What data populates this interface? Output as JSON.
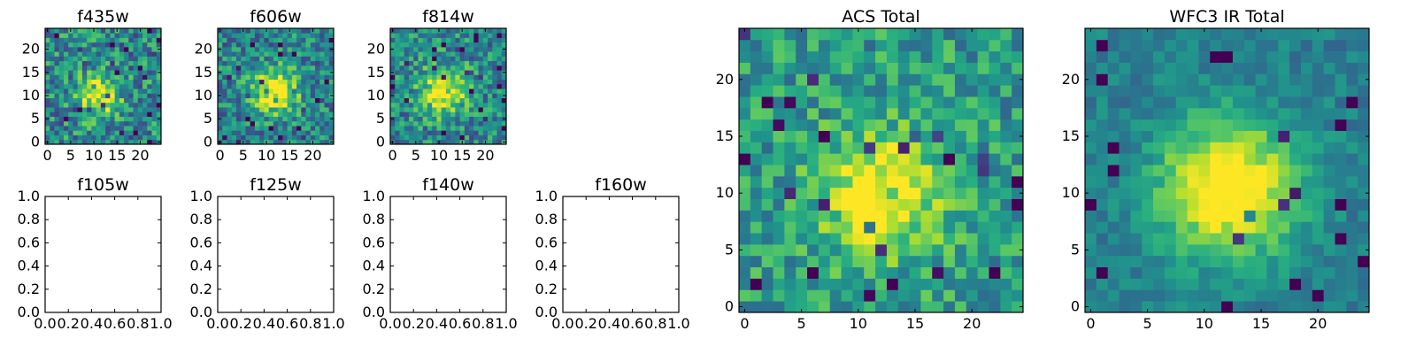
{
  "chart_data": [
    {
      "id": "f435w",
      "type": "heatmap",
      "title": "f435w",
      "grid_size": 25,
      "has_image": true,
      "extent": [
        -0.5,
        24.5
      ],
      "xticks": [
        0,
        5,
        10,
        15,
        20
      ],
      "yticks": [
        0,
        5,
        10,
        15,
        20
      ],
      "center": [
        11,
        10
      ],
      "sigma": 3.2,
      "amp": 0.55,
      "noise": 0.55,
      "bg": 0.22,
      "seed": 11,
      "colormap": "viridis"
    },
    {
      "id": "f606w",
      "type": "heatmap",
      "title": "f606w",
      "grid_size": 25,
      "has_image": true,
      "extent": [
        -0.5,
        24.5
      ],
      "xticks": [
        0,
        5,
        10,
        15,
        20
      ],
      "yticks": [
        0,
        5,
        10,
        15,
        20
      ],
      "center": [
        12,
        11
      ],
      "sigma": 3.5,
      "amp": 0.6,
      "noise": 0.5,
      "bg": 0.2,
      "seed": 23,
      "colormap": "viridis"
    },
    {
      "id": "f814w",
      "type": "heatmap",
      "title": "f814w",
      "grid_size": 25,
      "has_image": true,
      "extent": [
        -0.5,
        24.5
      ],
      "xticks": [
        0,
        5,
        10,
        15,
        20
      ],
      "yticks": [
        0,
        5,
        10,
        15,
        20
      ],
      "center": [
        11,
        11
      ],
      "sigma": 3.5,
      "amp": 0.55,
      "noise": 0.5,
      "bg": 0.22,
      "seed": 37,
      "colormap": "viridis"
    },
    {
      "id": "f105w",
      "type": "heatmap",
      "title": "f105w",
      "has_image": false,
      "xlim": [
        0,
        1
      ],
      "ylim": [
        0,
        1
      ],
      "xticks": [
        "0.0",
        "0.2",
        "0.4",
        "0.6",
        "0.8",
        "1.0"
      ],
      "yticks": [
        "0.0",
        "0.2",
        "0.4",
        "0.6",
        "0.8",
        "1.0"
      ]
    },
    {
      "id": "f125w",
      "type": "heatmap",
      "title": "f125w",
      "has_image": false,
      "xlim": [
        0,
        1
      ],
      "ylim": [
        0,
        1
      ],
      "xticks": [
        "0.0",
        "0.2",
        "0.4",
        "0.6",
        "0.8",
        "1.0"
      ],
      "yticks": [
        "0.0",
        "0.2",
        "0.4",
        "0.6",
        "0.8",
        "1.0"
      ]
    },
    {
      "id": "f140w",
      "type": "heatmap",
      "title": "f140w",
      "has_image": false,
      "xlim": [
        0,
        1
      ],
      "ylim": [
        0,
        1
      ],
      "xticks": [
        "0.0",
        "0.2",
        "0.4",
        "0.6",
        "0.8",
        "1.0"
      ],
      "yticks": [
        "0.0",
        "0.2",
        "0.4",
        "0.6",
        "0.8",
        "1.0"
      ]
    },
    {
      "id": "f160w",
      "type": "heatmap",
      "title": "f160w",
      "has_image": false,
      "xlim": [
        0,
        1
      ],
      "ylim": [
        0,
        1
      ],
      "xticks": [
        "0.0",
        "0.2",
        "0.4",
        "0.6",
        "0.8",
        "1.0"
      ],
      "yticks": [
        "0.0",
        "0.2",
        "0.4",
        "0.6",
        "0.8",
        "1.0"
      ]
    },
    {
      "id": "acs-total",
      "type": "heatmap",
      "title": "ACS Total",
      "grid_size": 25,
      "has_image": true,
      "extent": [
        -0.5,
        24.5
      ],
      "xticks": [
        0,
        5,
        10,
        15,
        20
      ],
      "yticks": [
        0,
        5,
        10,
        15,
        20
      ],
      "center": [
        12,
        10
      ],
      "sigma": 3.6,
      "amp": 0.55,
      "noise": 0.42,
      "bg": 0.3,
      "seed": 53,
      "colormap": "viridis"
    },
    {
      "id": "wfc3-ir-total",
      "type": "heatmap",
      "title": "WFC3 IR Total",
      "grid_size": 25,
      "has_image": true,
      "extent": [
        -0.5,
        24.5
      ],
      "xticks": [
        0,
        5,
        10,
        15,
        20
      ],
      "yticks": [
        0,
        5,
        10,
        15,
        20
      ],
      "center": [
        12,
        10.5
      ],
      "sigma": 4.2,
      "amp": 0.7,
      "noise": 0.22,
      "bg": 0.18,
      "seed": 71,
      "colormap": "viridis"
    }
  ]
}
